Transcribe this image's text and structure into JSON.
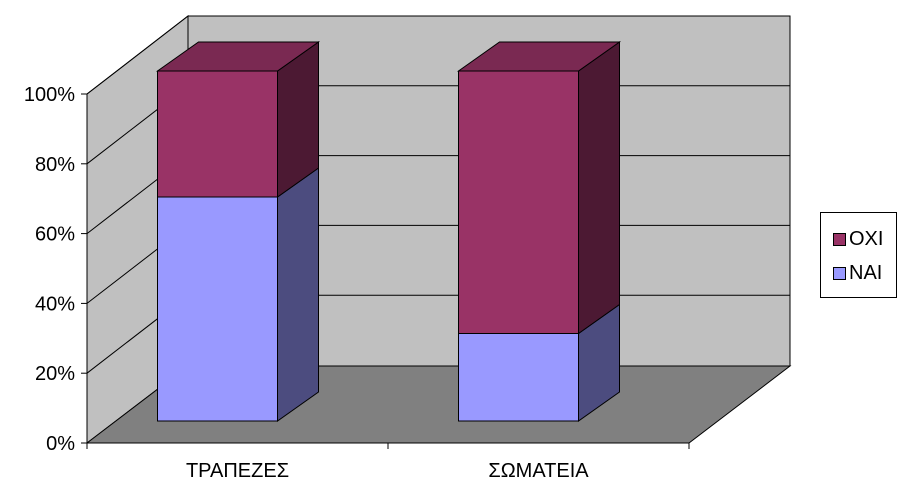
{
  "chart_data": {
    "type": "bar",
    "stacked": true,
    "percent_stacked": true,
    "three_d": true,
    "categories": [
      "ΤΡΑΠΕΖΕΣ",
      "ΣΩΜΑΤΕΙΑ"
    ],
    "series": [
      {
        "name": "ΝΑΙ",
        "values": [
          64,
          25
        ]
      },
      {
        "name": "ΟΧΙ",
        "values": [
          36,
          75
        ]
      }
    ],
    "yticks": [
      "0%",
      "20%",
      "40%",
      "60%",
      "80%",
      "100%"
    ],
    "ylim": [
      0,
      100
    ],
    "grid": true,
    "legend": "right",
    "colors": {
      "NAI_front": "#9999ff",
      "NAI_side": "#4c4c7f",
      "OXI_front": "#993366",
      "OXI_side": "#4c1933",
      "OXI_top": "#7a2952",
      "wall": "#c0c0c0",
      "floor": "#808080"
    }
  },
  "legend": {
    "items": [
      {
        "label": "ΟΧΙ",
        "color": "#993366"
      },
      {
        "label": "ΝΑΙ",
        "color": "#9999ff"
      }
    ]
  }
}
